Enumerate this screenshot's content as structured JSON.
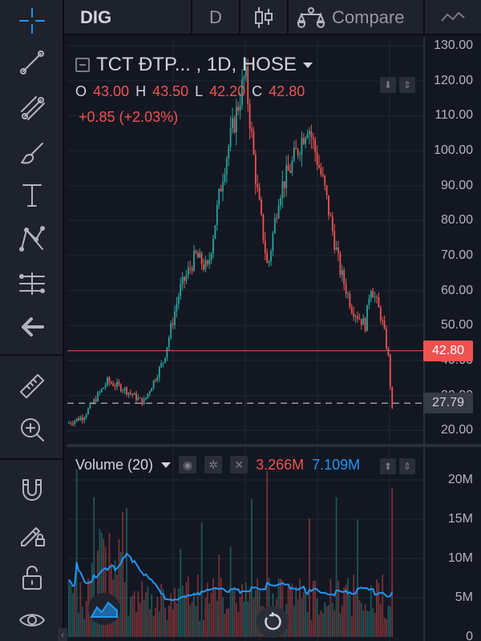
{
  "topbar": {
    "symbol": "DIG",
    "interval": "D",
    "compare_label": "Compare"
  },
  "legend": {
    "title": "TCT ĐTP... , 1D, HOSE",
    "open_key": "O",
    "open": "43.00",
    "high_key": "H",
    "high": "43.50",
    "low_key": "L",
    "low": "42.20",
    "close_key": "C",
    "close": "42.80",
    "change": "+0.85 (+2.03%)"
  },
  "price_axis": {
    "ticks": [
      "130.00",
      "120.00",
      "110.00",
      "100.00",
      "90.00",
      "80.00",
      "70.00",
      "60.00",
      "50.00",
      "40.00",
      "30.00",
      "20.00"
    ],
    "last_price": "42.80",
    "dashed_level": "27.79"
  },
  "volume": {
    "title": "Volume (20)",
    "last_volume": "3.266M",
    "ma_value": "7.109M",
    "ticks": [
      "20M",
      "15M",
      "10M",
      "5M",
      "0"
    ]
  },
  "colors": {
    "background": "#131722",
    "up": "#26a69a",
    "down": "#ef5350",
    "accent": "#2196f3",
    "panel": "#1e222d"
  },
  "toolbar": {
    "icons": [
      "crosshair-icon",
      "trend-line-icon",
      "fib-icon",
      "brush-icon",
      "text-icon",
      "pattern-icon",
      "prediction-icon",
      "back-arrow-icon",
      "ruler-icon",
      "zoom-in-icon",
      "magnet-icon",
      "lock-drawing-icon",
      "unlock-icon",
      "eye-icon"
    ]
  }
}
